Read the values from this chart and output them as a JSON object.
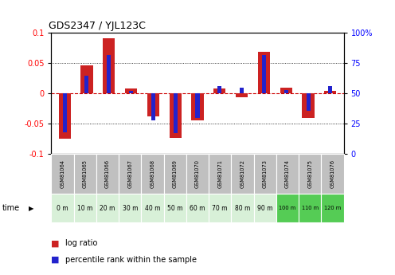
{
  "title": "GDS2347 / YJL123C",
  "samples": [
    "GSM81064",
    "GSM81065",
    "GSM81066",
    "GSM81067",
    "GSM81068",
    "GSM81069",
    "GSM81070",
    "GSM81071",
    "GSM81072",
    "GSM81073",
    "GSM81074",
    "GSM81075",
    "GSM81076"
  ],
  "time_labels": [
    "0 m",
    "10 m",
    "20 m",
    "30 m",
    "40 m",
    "50 m",
    "60 m",
    "70 m",
    "80 m",
    "90 m",
    "100 m",
    "110 m",
    "120 m"
  ],
  "log_ratio": [
    -0.075,
    0.046,
    0.091,
    0.008,
    -0.038,
    -0.073,
    -0.045,
    0.008,
    -0.006,
    0.069,
    0.01,
    -0.04,
    0.004
  ],
  "percentile": [
    18,
    65,
    82,
    52,
    28,
    17,
    30,
    56,
    55,
    82,
    53,
    36,
    56
  ],
  "ylim": [
    -0.1,
    0.1
  ],
  "yticks_left": [
    -0.1,
    -0.05,
    0.0,
    0.05,
    0.1
  ],
  "yticks_right": [
    0,
    25,
    50,
    75,
    100
  ],
  "bar_color_red": "#cc2222",
  "bar_color_blue": "#2222cc",
  "grid_color": "#000000",
  "zero_line_color": "#cc0000",
  "background_color": "#ffffff",
  "cell_colors_gsm": [
    "#c0c0c0",
    "#c0c0c0",
    "#c0c0c0",
    "#c0c0c0",
    "#c0c0c0",
    "#c0c0c0",
    "#c0c0c0",
    "#c0c0c0",
    "#c0c0c0",
    "#c0c0c0",
    "#c0c0c0",
    "#c0c0c0",
    "#c0c0c0"
  ],
  "cell_colors_time": [
    "#d8f0d8",
    "#d8f0d8",
    "#d8f0d8",
    "#d8f0d8",
    "#d8f0d8",
    "#d8f0d8",
    "#d8f0d8",
    "#d8f0d8",
    "#d8f0d8",
    "#d8f0d8",
    "#55cc55",
    "#55cc55",
    "#55cc55"
  ]
}
